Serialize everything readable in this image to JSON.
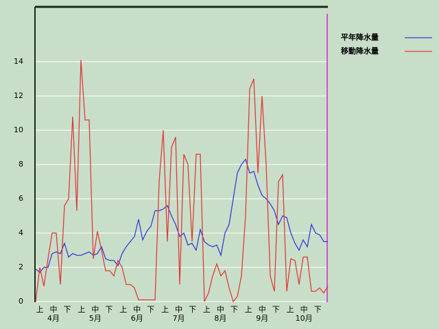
{
  "chart_data": {
    "type": "line",
    "ylim": [
      0,
      17.2
    ],
    "yticks": [
      0,
      2,
      4,
      6,
      8,
      10,
      12,
      14
    ],
    "grid": true,
    "xlim": [
      0,
      71
    ],
    "dekads": [
      "上",
      "中",
      "下",
      "上",
      "中",
      "下",
      "上",
      "中",
      "下",
      "上",
      "中",
      "下",
      "上",
      "中",
      "下",
      "上",
      "中",
      "下",
      "上",
      "中",
      "下"
    ],
    "months": [
      "4月",
      "5月",
      "6月",
      "7月",
      "8月",
      "9月",
      "10月"
    ],
    "series": [
      {
        "name": "平年降水量",
        "color": "#3a3ad8",
        "values": [
          1.9,
          1.7,
          2.0,
          2.0,
          2.8,
          2.9,
          2.8,
          3.4,
          2.6,
          2.8,
          2.7,
          2.7,
          2.8,
          2.9,
          2.7,
          2.8,
          3.2,
          2.5,
          2.4,
          2.4,
          2.1,
          2.8,
          3.2,
          3.5,
          3.8,
          4.8,
          3.6,
          4.1,
          4.4,
          5.3,
          5.3,
          5.4,
          5.6,
          5.0,
          4.5,
          3.8,
          4.0,
          3.3,
          3.4,
          3.0,
          4.2,
          3.5,
          3.3,
          3.2,
          3.3,
          2.7,
          4.0,
          4.5,
          6.0,
          7.5,
          8.0,
          8.3,
          7.5,
          7.6,
          6.8,
          6.2,
          6.0,
          5.7,
          5.3,
          4.5,
          5.0,
          4.9,
          4.0,
          3.4,
          3.0,
          3.6,
          3.2,
          4.5,
          4.0,
          3.9,
          3.5,
          3.5
        ]
      },
      {
        "name": "移動降水量",
        "color": "#e03a3a",
        "values": [
          0,
          2.0,
          0.9,
          2.5,
          4.0,
          4.0,
          1.0,
          5.6,
          6.0,
          10.8,
          5.3,
          14.1,
          10.6,
          10.6,
          2.5,
          4.1,
          3.0,
          1.8,
          1.8,
          1.5,
          2.4,
          2.0,
          1.0,
          1.0,
          0.8,
          0.1,
          0.1,
          0.1,
          0.1,
          0.1,
          7.0,
          10.0,
          3.5,
          9.0,
          9.6,
          1.0,
          8.6,
          8.0,
          3.5,
          8.6,
          8.6,
          0,
          0.5,
          1.5,
          2.2,
          1.5,
          1.8,
          0.8,
          0,
          0.3,
          1.5,
          5.0,
          12.4,
          13.0,
          7.5,
          12.0,
          8.0,
          1.5,
          0.6,
          7.0,
          7.4,
          0.6,
          2.5,
          2.4,
          1.0,
          2.6,
          2.6,
          0.6,
          0.6,
          0.8,
          0.5,
          0.9
        ]
      }
    ],
    "legend": "upper-right"
  }
}
